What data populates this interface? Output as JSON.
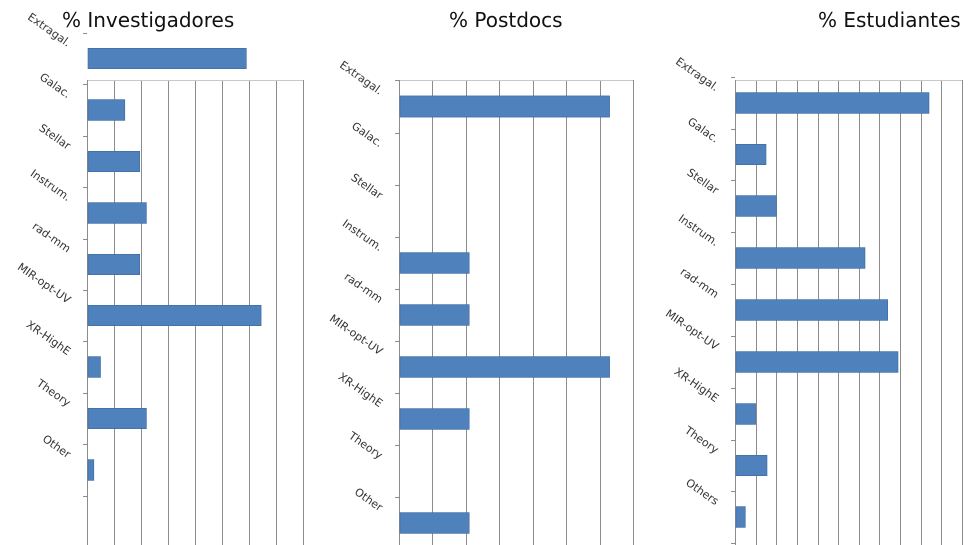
{
  "colors": {
    "bar": "#4f81bd",
    "bar_edge": "#3d6a9e",
    "grid": "#8c8c8c"
  },
  "chart_data": [
    {
      "type": "bar",
      "orientation": "horizontal",
      "title": "% Investigadores",
      "categories": [
        "Extragal.",
        "Galac.",
        "Stellar",
        "Instrum.",
        "rad-mm",
        "MIR-opt-UV",
        "XR-HighE",
        "Theory",
        "Other"
      ],
      "values": [
        5.9,
        1.4,
        1.95,
        2.2,
        1.95,
        6.45,
        0.5,
        2.2,
        0.25
      ],
      "xlim": [
        0,
        8
      ],
      "grid": true
    },
    {
      "type": "bar",
      "orientation": "horizontal",
      "title": "% Postdocs",
      "categories": [
        "Extragal.",
        "Galac.",
        "Stellar",
        "Instrum.",
        "rad-mm",
        "MIR-opt-UV",
        "XR-HighE",
        "Theory",
        "Other"
      ],
      "values": [
        6.3,
        0,
        0,
        2.1,
        2.1,
        6.3,
        2.1,
        0,
        2.1
      ],
      "xlim": [
        0,
        7
      ],
      "grid": true
    },
    {
      "type": "bar",
      "orientation": "horizontal",
      "title": "% Estudiantes",
      "categories": [
        "Extragal.",
        "Galac.",
        "Stellar",
        "Instrum.",
        "rad-mm",
        "MIR-opt-UV",
        "XR-HighE",
        "Theory",
        "Others"
      ],
      "values": [
        9.4,
        1.5,
        2.0,
        6.3,
        7.4,
        7.9,
        1.0,
        1.55,
        0.5
      ],
      "xlim": [
        0,
        11
      ],
      "grid": true
    }
  ]
}
